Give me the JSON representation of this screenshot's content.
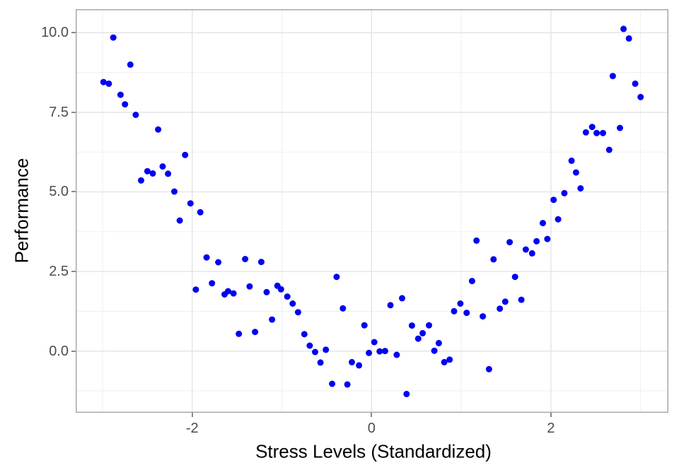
{
  "figure": {
    "background": "#FFFFFF"
  },
  "style": {
    "point_color": "#0202F2",
    "grid_major_color": "#E3E3E3",
    "grid_minor_color": "#EFEFEF",
    "panel_border_color": "#A8A8A8",
    "tick_mark_color": "#8A8A8A",
    "tick_label_color": "#4D4D4D",
    "axis_title_color": "#000000"
  },
  "chart_data": {
    "type": "scatter",
    "title": "",
    "xlabel": "Stress Levels (Standardized)",
    "ylabel": "Performance",
    "xlim": [
      -3.3,
      3.31
    ],
    "ylim": [
      -1.94,
      10.74
    ],
    "grid": true,
    "legend_position": "none",
    "x_major_ticks": [
      -2,
      0,
      2
    ],
    "x_tick_labels": [
      "-2",
      "0",
      "2"
    ],
    "x_minor_ticks": [
      -3,
      -1,
      1,
      3
    ],
    "y_major_ticks": [
      0.0,
      2.5,
      5.0,
      7.5,
      10.0
    ],
    "y_tick_labels": [
      "0.0",
      "2.5",
      "5.0",
      "7.5",
      "10.0"
    ],
    "y_minor_ticks": [
      -1.25,
      1.25,
      3.75,
      6.25,
      8.75
    ],
    "marker_diameter_px": 9,
    "points": [
      [
        -2.88,
        9.85
      ],
      [
        -2.69,
        9.0
      ],
      [
        -2.99,
        8.45
      ],
      [
        -2.93,
        8.4
      ],
      [
        -2.8,
        8.05
      ],
      [
        -2.75,
        7.75
      ],
      [
        -2.63,
        7.42
      ],
      [
        -2.38,
        6.96
      ],
      [
        -2.08,
        6.16
      ],
      [
        -2.33,
        5.8
      ],
      [
        -2.5,
        5.65
      ],
      [
        -2.44,
        5.58
      ],
      [
        -2.27,
        5.57
      ],
      [
        -2.57,
        5.36
      ],
      [
        -2.2,
        5.01
      ],
      [
        -2.02,
        4.64
      ],
      [
        -1.91,
        4.36
      ],
      [
        -2.14,
        4.1
      ],
      [
        -1.84,
        2.94
      ],
      [
        -1.71,
        2.79
      ],
      [
        -1.41,
        2.89
      ],
      [
        -1.23,
        2.8
      ],
      [
        -1.78,
        2.13
      ],
      [
        -1.96,
        1.93
      ],
      [
        -1.64,
        1.78
      ],
      [
        -1.6,
        1.88
      ],
      [
        -1.54,
        1.81
      ],
      [
        -1.36,
        2.03
      ],
      [
        -1.17,
        1.85
      ],
      [
        -1.05,
        2.05
      ],
      [
        -1.01,
        1.94
      ],
      [
        -0.94,
        1.71
      ],
      [
        -0.88,
        1.49
      ],
      [
        -0.82,
        1.22
      ],
      [
        -0.39,
        2.33
      ],
      [
        -0.32,
        1.34
      ],
      [
        -1.11,
        0.99
      ],
      [
        -1.48,
        0.54
      ],
      [
        -1.3,
        0.6
      ],
      [
        -0.75,
        0.53
      ],
      [
        -0.69,
        0.17
      ],
      [
        -0.63,
        -0.03
      ],
      [
        -0.51,
        0.04
      ],
      [
        -0.57,
        -0.36
      ],
      [
        -0.22,
        -0.35
      ],
      [
        -0.44,
        -1.03
      ],
      [
        -0.27,
        -1.05
      ],
      [
        -0.14,
        -0.45
      ],
      [
        -0.08,
        0.81
      ],
      [
        -0.03,
        -0.06
      ],
      [
        0.03,
        0.28
      ],
      [
        0.09,
        -0.01
      ],
      [
        0.15,
        0.0
      ],
      [
        0.21,
        1.44
      ],
      [
        0.28,
        -0.12
      ],
      [
        0.34,
        1.66
      ],
      [
        0.39,
        -1.35
      ],
      [
        0.45,
        0.8
      ],
      [
        0.52,
        0.39
      ],
      [
        0.57,
        0.56
      ],
      [
        0.64,
        0.81
      ],
      [
        0.7,
        0.01
      ],
      [
        0.75,
        0.25
      ],
      [
        0.81,
        -0.35
      ],
      [
        0.87,
        -0.27
      ],
      [
        0.92,
        1.25
      ],
      [
        0.99,
        1.49
      ],
      [
        1.06,
        1.2
      ],
      [
        1.12,
        2.2
      ],
      [
        1.17,
        3.47
      ],
      [
        1.54,
        3.42
      ],
      [
        1.72,
        3.19
      ],
      [
        1.79,
        3.07
      ],
      [
        1.84,
        3.45
      ],
      [
        1.96,
        3.52
      ],
      [
        1.36,
        2.88
      ],
      [
        1.6,
        2.33
      ],
      [
        1.24,
        1.09
      ],
      [
        1.43,
        1.33
      ],
      [
        1.49,
        1.55
      ],
      [
        1.67,
        1.61
      ],
      [
        1.31,
        -0.57
      ],
      [
        2.81,
        10.12
      ],
      [
        2.87,
        9.82
      ],
      [
        2.69,
        8.64
      ],
      [
        2.94,
        8.4
      ],
      [
        3.0,
        7.98
      ],
      [
        2.46,
        7.04
      ],
      [
        2.39,
        6.87
      ],
      [
        2.51,
        6.85
      ],
      [
        2.58,
        6.85
      ],
      [
        2.77,
        7.01
      ],
      [
        2.65,
        6.32
      ],
      [
        2.23,
        5.98
      ],
      [
        2.28,
        5.61
      ],
      [
        2.33,
        5.11
      ],
      [
        2.15,
        4.96
      ],
      [
        2.03,
        4.75
      ],
      [
        2.08,
        4.14
      ],
      [
        1.91,
        4.02
      ]
    ]
  }
}
